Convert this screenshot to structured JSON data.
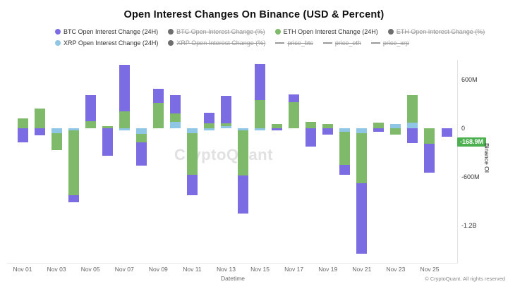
{
  "title": "Open Interest Changes On Binance (USD & Percent)",
  "legend": {
    "rows": [
      [
        {
          "label": "BTC Open Interest Change (24H)",
          "marker": "dot",
          "color": "#7b6ce4",
          "active": true
        },
        {
          "label": "BTC Open Interest Change (%)",
          "marker": "dot",
          "color": "#6e6e6e",
          "active": false
        },
        {
          "label": "ETH Open Interest Change (24H)",
          "marker": "dot",
          "color": "#7fba6a",
          "active": true
        },
        {
          "label": "ETH Open Interest Change (%)",
          "marker": "dot",
          "color": "#6e6e6e",
          "active": false
        }
      ],
      [
        {
          "label": "XRP Open Interest Change (24H)",
          "marker": "dot",
          "color": "#8fc6e6",
          "active": true
        },
        {
          "label": "XRP Open Interest Change (%)",
          "marker": "dot",
          "color": "#6e6e6e",
          "active": false
        },
        {
          "label": "price_btc",
          "marker": "line",
          "color": "#9a9a9a",
          "active": false
        },
        {
          "label": "price_eth",
          "marker": "line",
          "color": "#9a9a9a",
          "active": false
        },
        {
          "label": "price_xrp",
          "marker": "line",
          "color": "#9a9a9a",
          "active": false
        }
      ]
    ]
  },
  "chart_data": {
    "type": "bar",
    "stacked": true,
    "unit": "USD, millions (estimated from axis)",
    "categories": [
      "Nov 01",
      "Nov 02",
      "Nov 03",
      "Nov 04",
      "Nov 05",
      "Nov 06",
      "Nov 07",
      "Nov 08",
      "Nov 09",
      "Nov 10",
      "Nov 11",
      "Nov 12",
      "Nov 13",
      "Nov 14",
      "Nov 15",
      "Nov 16",
      "Nov 17",
      "Nov 18",
      "Nov 19",
      "Nov 20",
      "Nov 21",
      "Nov 22",
      "Nov 23",
      "Nov 24",
      "Nov 25",
      "Nov 26"
    ],
    "series": [
      {
        "name": "BTC Open Interest Change (24H)",
        "color": "#7b6ce4",
        "values": [
          -175,
          -90,
          0,
          -85,
          320,
          -335,
          575,
          -290,
          175,
          225,
          -250,
          125,
          335,
          -470,
          445,
          -30,
          90,
          -225,
          -75,
          -120,
          -870,
          -40,
          0,
          -185,
          -350,
          -105
        ]
      },
      {
        "name": "ETH Open Interest Change (24H)",
        "color": "#7fba6a",
        "values": [
          125,
          245,
          -210,
          -795,
          90,
          30,
          210,
          -100,
          310,
          105,
          -515,
          65,
          40,
          -550,
          350,
          55,
          325,
          80,
          55,
          -415,
          -615,
          70,
          -80,
          340,
          -195,
          0
        ]
      },
      {
        "name": "XRP Open Interest Change (24H)",
        "color": "#8fc6e6",
        "values": [
          0,
          0,
          -60,
          -30,
          0,
          0,
          -25,
          -70,
          0,
          80,
          -60,
          -30,
          25,
          -30,
          -25,
          0,
          0,
          0,
          0,
          -40,
          -60,
          0,
          55,
          70,
          0,
          0
        ]
      }
    ],
    "stack_order_from_zero": [
      "XRP",
      "ETH",
      "BTC"
    ],
    "xlabel": "Datetime",
    "ylabel": "Binance OI",
    "y_ticks": [
      "600M",
      "0",
      "-600M",
      "-1.2B"
    ],
    "y_tick_values_m": [
      600,
      0,
      -600,
      -1200
    ],
    "x_tick_labels": [
      "Nov 01",
      "Nov 03",
      "Nov 05",
      "Nov 07",
      "Nov 09",
      "Nov 11",
      "Nov 13",
      "Nov 15",
      "Nov 17",
      "Nov 19",
      "Nov 21",
      "Nov 23",
      "Nov 25"
    ],
    "ylim_m": [
      -1400,
      800
    ],
    "grid": false,
    "legend_position": "top"
  },
  "badge": {
    "value": "-168.9M",
    "color": "#4caf50"
  },
  "watermark": "CryptoQuant",
  "copyright": "© CryptoQuant. All rights reserved"
}
